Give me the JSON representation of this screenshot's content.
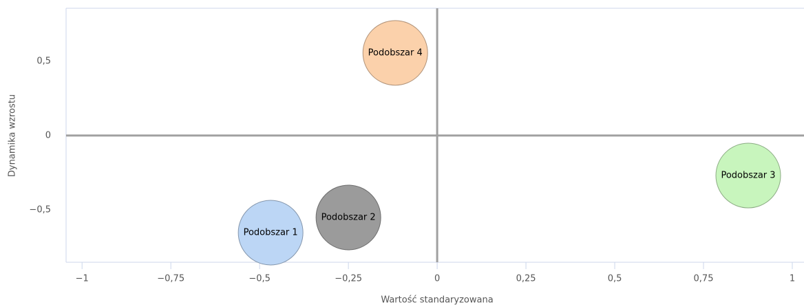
{
  "chart_data": {
    "type": "bubble",
    "xlabel": "Wartość standaryzowana",
    "ylabel": "Dynamika wzrostu",
    "xlim": [
      -1.045,
      1.033
    ],
    "ylim": [
      -0.852,
      0.856
    ],
    "xticks": [
      {
        "value": -1,
        "label": "−1"
      },
      {
        "value": -0.75,
        "label": "−0,75"
      },
      {
        "value": -0.5,
        "label": "−0,5"
      },
      {
        "value": -0.25,
        "label": "−0,25"
      },
      0,
      {
        "value": 0.25,
        "label": "0,25"
      },
      {
        "value": 0.5,
        "label": "0,5"
      },
      {
        "value": 0.75,
        "label": "0,75"
      },
      1
    ],
    "yticks": [
      {
        "value": -0.5,
        "label": "−0,5"
      },
      0,
      {
        "value": 0.5,
        "label": "0,5"
      }
    ],
    "series": [
      {
        "name": "Podobszar 1",
        "color": "#bcd6f5",
        "x": -0.469,
        "y": -0.653
      },
      {
        "name": "Podobszar 2",
        "color": "#9b9b9b",
        "x": -0.25,
        "y": -0.551
      },
      {
        "name": "Podobszar 3",
        "color": "#c8f5bd",
        "x": 0.876,
        "y": -0.269
      },
      {
        "name": "Podobszar 4",
        "color": "#fbd1ab",
        "x": -0.118,
        "y": 0.556
      }
    ]
  }
}
